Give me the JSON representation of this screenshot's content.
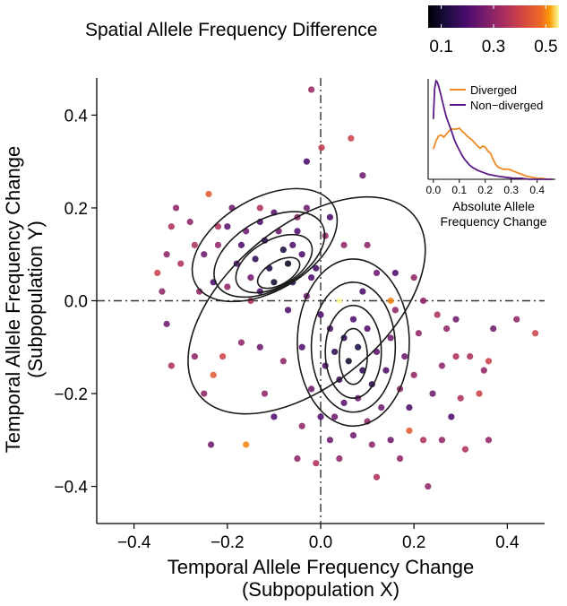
{
  "chart_data": [
    {
      "type": "scatter",
      "title": "",
      "xlabel_line1": "Temporal Allele Frequency Change",
      "xlabel_line2": "(Subpopulation X)",
      "ylabel_line1": "Temporal Allele Frequency Change",
      "ylabel_line2": "(Subpopulation Y)",
      "xlim": [
        -0.48,
        0.48
      ],
      "ylim": [
        -0.48,
        0.48
      ],
      "xticks": [
        -0.4,
        -0.2,
        0.0,
        0.2,
        0.4
      ],
      "xtick_labels": [
        "−0.4",
        "−0.2",
        "0.0",
        "0.2",
        "0.4"
      ],
      "yticks": [
        -0.4,
        -0.2,
        0.0,
        0.2,
        0.4
      ],
      "ytick_labels": [
        "−0.4",
        "−0.2",
        "0.0",
        "0.2",
        "0.4"
      ],
      "reference_lines": [
        {
          "axis": "x",
          "value": 0
        },
        {
          "axis": "y",
          "value": 0
        }
      ],
      "color_by": "Spatial Allele Frequency Difference",
      "colorbar": {
        "title": "Spatial Allele Frequency Difference",
        "range": [
          0.05,
          0.55
        ],
        "ticks": [
          0.1,
          0.3,
          0.5
        ],
        "tick_labels": [
          "0.1",
          "0.3",
          "0.5"
        ],
        "colormap": "inferno"
      },
      "density_contours": [
        {
          "level": 1,
          "cx": -0.09,
          "cy": 0.06,
          "rx": 0.05,
          "ry": 0.025,
          "rotation": -30
        },
        {
          "level": 2,
          "cx": -0.1,
          "cy": 0.08,
          "rx": 0.09,
          "ry": 0.05,
          "rotation": -30
        },
        {
          "level": 3,
          "cx": -0.11,
          "cy": 0.1,
          "rx": 0.13,
          "ry": 0.075,
          "rotation": -30
        },
        {
          "level": 4,
          "cx": -0.12,
          "cy": 0.12,
          "rx": 0.17,
          "ry": 0.1,
          "rotation": -30
        },
        {
          "level": 1,
          "cx": 0.07,
          "cy": -0.12,
          "rx": 0.03,
          "ry": 0.06,
          "rotation": 0
        },
        {
          "level": 2,
          "cx": 0.07,
          "cy": -0.11,
          "rx": 0.06,
          "ry": 0.1,
          "rotation": 0
        },
        {
          "level": 3,
          "cx": 0.07,
          "cy": -0.1,
          "rx": 0.09,
          "ry": 0.14,
          "rotation": 0
        },
        {
          "level": 4,
          "cx": 0.07,
          "cy": -0.09,
          "rx": 0.12,
          "ry": 0.18,
          "rotation": 0
        },
        {
          "level": 5,
          "cx": -0.03,
          "cy": -0.01,
          "rx": 0.3,
          "ry": 0.17,
          "rotation": -40
        }
      ],
      "series": [
        {
          "name": "points",
          "points": [
            {
              "x": -0.02,
              "y": 0.455,
              "c": 0.32
            },
            {
              "x": 0.065,
              "y": 0.35,
              "c": 0.4
            },
            {
              "x": 0.002,
              "y": 0.33,
              "c": 0.38
            },
            {
              "x": -0.03,
              "y": 0.3,
              "c": 0.2
            },
            {
              "x": 0.09,
              "y": 0.27,
              "c": 0.25
            },
            {
              "x": -0.13,
              "y": 0.2,
              "c": 0.35
            },
            {
              "x": -0.24,
              "y": 0.23,
              "c": 0.45
            },
            {
              "x": -0.22,
              "y": 0.16,
              "c": 0.35
            },
            {
              "x": -0.2,
              "y": 0.16,
              "c": 0.22
            },
            {
              "x": -0.28,
              "y": 0.17,
              "c": 0.3
            },
            {
              "x": -0.31,
              "y": 0.2,
              "c": 0.3
            },
            {
              "x": -0.32,
              "y": 0.16,
              "c": 0.35
            },
            {
              "x": -0.3,
              "y": 0.08,
              "c": 0.35
            },
            {
              "x": -0.33,
              "y": 0.1,
              "c": 0.3
            },
            {
              "x": -0.35,
              "y": 0.06,
              "c": 0.4
            },
            {
              "x": -0.34,
              "y": 0.02,
              "c": 0.3
            },
            {
              "x": -0.33,
              "y": -0.05,
              "c": 0.25
            },
            {
              "x": -0.32,
              "y": -0.14,
              "c": 0.35
            },
            {
              "x": -0.27,
              "y": -0.12,
              "c": 0.3
            },
            {
              "x": -0.23,
              "y": -0.16,
              "c": 0.45
            },
            {
              "x": -0.25,
              "y": -0.2,
              "c": 0.3
            },
            {
              "x": -0.21,
              "y": -0.12,
              "c": 0.4
            },
            {
              "x": -0.17,
              "y": -0.09,
              "c": 0.3
            },
            {
              "x": -0.13,
              "y": -0.1,
              "c": 0.25
            },
            {
              "x": -0.12,
              "y": -0.2,
              "c": 0.3
            },
            {
              "x": -0.16,
              "y": -0.31,
              "c": 0.5
            },
            {
              "x": -0.235,
              "y": -0.31,
              "c": 0.25
            },
            {
              "x": -0.1,
              "y": -0.25,
              "c": 0.2
            },
            {
              "x": 0.01,
              "y": 0.14,
              "c": 0.3
            },
            {
              "x": -0.05,
              "y": 0.15,
              "c": 0.2
            },
            {
              "x": -0.03,
              "y": 0.2,
              "c": 0.25
            },
            {
              "x": 0.02,
              "y": 0.18,
              "c": 0.2
            },
            {
              "x": 0.05,
              "y": 0.12,
              "c": 0.3
            },
            {
              "x": 0.1,
              "y": 0.12,
              "c": 0.3
            },
            {
              "x": 0.12,
              "y": 0.06,
              "c": 0.25
            },
            {
              "x": 0.16,
              "y": 0.06,
              "c": 0.2
            },
            {
              "x": 0.2,
              "y": 0.05,
              "c": 0.3
            },
            {
              "x": 0.22,
              "y": 0.0,
              "c": 0.3
            },
            {
              "x": 0.25,
              "y": -0.03,
              "c": 0.35
            },
            {
              "x": 0.27,
              "y": -0.06,
              "c": 0.3
            },
            {
              "x": 0.29,
              "y": -0.04,
              "c": 0.25
            },
            {
              "x": 0.29,
              "y": -0.12,
              "c": 0.35
            },
            {
              "x": 0.32,
              "y": -0.12,
              "c": 0.35
            },
            {
              "x": 0.36,
              "y": -0.13,
              "c": 0.4
            },
            {
              "x": 0.46,
              "y": -0.07,
              "c": 0.4
            },
            {
              "x": 0.42,
              "y": -0.04,
              "c": 0.3
            },
            {
              "x": 0.37,
              "y": -0.06,
              "c": 0.25
            },
            {
              "x": 0.35,
              "y": -0.15,
              "c": 0.3
            },
            {
              "x": 0.34,
              "y": -0.2,
              "c": 0.4
            },
            {
              "x": 0.3,
              "y": -0.21,
              "c": 0.35
            },
            {
              "x": 0.28,
              "y": -0.25,
              "c": 0.2
            },
            {
              "x": 0.36,
              "y": -0.3,
              "c": 0.3
            },
            {
              "x": 0.31,
              "y": -0.32,
              "c": 0.35
            },
            {
              "x": 0.26,
              "y": -0.3,
              "c": 0.3
            },
            {
              "x": 0.22,
              "y": -0.3,
              "c": 0.35
            },
            {
              "x": 0.19,
              "y": -0.28,
              "c": 0.45
            },
            {
              "x": 0.15,
              "y": -0.3,
              "c": 0.25
            },
            {
              "x": 0.11,
              "y": -0.31,
              "c": 0.3
            },
            {
              "x": 0.07,
              "y": -0.29,
              "c": 0.25
            },
            {
              "x": 0.04,
              "y": -0.34,
              "c": 0.3
            },
            {
              "x": -0.01,
              "y": -0.35,
              "c": 0.35
            },
            {
              "x": -0.05,
              "y": -0.34,
              "c": 0.3
            },
            {
              "x": -0.04,
              "y": -0.27,
              "c": 0.3
            },
            {
              "x": 0.0,
              "y": -0.25,
              "c": 0.2
            },
            {
              "x": 0.02,
              "y": -0.3,
              "c": 0.25
            },
            {
              "x": 0.12,
              "y": -0.38,
              "c": 0.35
            },
            {
              "x": 0.17,
              "y": -0.34,
              "c": 0.3
            },
            {
              "x": 0.23,
              "y": -0.4,
              "c": 0.3
            },
            {
              "x": -0.06,
              "y": 0.04,
              "c": 0.15
            },
            {
              "x": -0.11,
              "y": 0.07,
              "c": 0.12
            },
            {
              "x": -0.14,
              "y": 0.09,
              "c": 0.15
            },
            {
              "x": -0.08,
              "y": 0.11,
              "c": 0.12
            },
            {
              "x": -0.12,
              "y": 0.13,
              "c": 0.15
            },
            {
              "x": -0.17,
              "y": 0.12,
              "c": 0.2
            },
            {
              "x": -0.1,
              "y": 0.04,
              "c": 0.1
            },
            {
              "x": -0.07,
              "y": 0.08,
              "c": 0.08
            },
            {
              "x": -0.04,
              "y": 0.1,
              "c": 0.2
            },
            {
              "x": -0.15,
              "y": 0.05,
              "c": 0.25
            },
            {
              "x": -0.18,
              "y": 0.08,
              "c": 0.2
            },
            {
              "x": -0.2,
              "y": 0.03,
              "c": 0.3
            },
            {
              "x": -0.13,
              "y": 0.02,
              "c": 0.2
            },
            {
              "x": -0.09,
              "y": 0.15,
              "c": 0.25
            },
            {
              "x": -0.13,
              "y": 0.17,
              "c": 0.2
            },
            {
              "x": -0.06,
              "y": 0.12,
              "c": 0.2
            },
            {
              "x": -0.02,
              "y": 0.05,
              "c": 0.2
            },
            {
              "x": -0.03,
              "y": 0.01,
              "c": 0.25
            },
            {
              "x": -0.01,
              "y": 0.07,
              "c": 0.18
            },
            {
              "x": -0.16,
              "y": 0.15,
              "c": 0.25
            },
            {
              "x": -0.22,
              "y": 0.12,
              "c": 0.3
            },
            {
              "x": -0.25,
              "y": 0.1,
              "c": 0.25
            },
            {
              "x": -0.23,
              "y": 0.04,
              "c": 0.2
            },
            {
              "x": -0.26,
              "y": 0.02,
              "c": 0.3
            },
            {
              "x": -0.27,
              "y": 0.12,
              "c": 0.35
            },
            {
              "x": -0.19,
              "y": 0.2,
              "c": 0.25
            },
            {
              "x": -0.1,
              "y": 0.19,
              "c": 0.22
            },
            {
              "x": -0.05,
              "y": 0.18,
              "c": 0.3
            },
            {
              "x": 0.05,
              "y": -0.08,
              "c": 0.15
            },
            {
              "x": 0.08,
              "y": -0.1,
              "c": 0.12
            },
            {
              "x": 0.06,
              "y": -0.13,
              "c": 0.1
            },
            {
              "x": 0.09,
              "y": -0.15,
              "c": 0.15
            },
            {
              "x": 0.04,
              "y": -0.17,
              "c": 0.18
            },
            {
              "x": 0.1,
              "y": -0.06,
              "c": 0.2
            },
            {
              "x": 0.12,
              "y": -0.11,
              "c": 0.22
            },
            {
              "x": 0.03,
              "y": -0.11,
              "c": 0.15
            },
            {
              "x": 0.07,
              "y": -0.04,
              "c": 0.2
            },
            {
              "x": 0.11,
              "y": -0.18,
              "c": 0.15
            },
            {
              "x": 0.08,
              "y": -0.21,
              "c": 0.25
            },
            {
              "x": 0.14,
              "y": -0.15,
              "c": 0.2
            },
            {
              "x": 0.15,
              "y": -0.08,
              "c": 0.25
            },
            {
              "x": 0.02,
              "y": -0.06,
              "c": 0.18
            },
            {
              "x": 0.01,
              "y": -0.14,
              "c": 0.2
            },
            {
              "x": 0.05,
              "y": -0.22,
              "c": 0.22
            },
            {
              "x": 0.13,
              "y": -0.23,
              "c": 0.25
            },
            {
              "x": 0.17,
              "y": -0.19,
              "c": 0.3
            },
            {
              "x": 0.18,
              "y": -0.12,
              "c": 0.25
            },
            {
              "x": 0.16,
              "y": -0.02,
              "c": 0.3
            },
            {
              "x": 0.09,
              "y": 0.02,
              "c": 0.2
            },
            {
              "x": 0.04,
              "y": 0.0,
              "c": 0.55
            },
            {
              "x": 0.15,
              "y": 0.0,
              "c": 0.5
            },
            {
              "x": -0.07,
              "y": -0.02,
              "c": 0.2
            },
            {
              "x": 0.0,
              "y": -0.03,
              "c": 0.2
            },
            {
              "x": 0.2,
              "y": -0.16,
              "c": 0.3
            },
            {
              "x": 0.21,
              "y": -0.07,
              "c": 0.3
            },
            {
              "x": 0.19,
              "y": -0.23,
              "c": 0.2
            },
            {
              "x": 0.1,
              "y": -0.26,
              "c": 0.3
            },
            {
              "x": 0.03,
              "y": -0.25,
              "c": 0.25
            },
            {
              "x": -0.02,
              "y": -0.19,
              "c": 0.25
            },
            {
              "x": -0.04,
              "y": -0.1,
              "c": 0.2
            },
            {
              "x": -0.08,
              "y": -0.13,
              "c": 0.3
            },
            {
              "x": -0.15,
              "y": 0.0,
              "c": 0.35
            },
            {
              "x": 0.24,
              "y": -0.2,
              "c": 0.25
            },
            {
              "x": 0.26,
              "y": -0.14,
              "c": 0.3
            }
          ]
        }
      ]
    },
    {
      "type": "line",
      "title": "",
      "xlabel_line1": "Absolute Allele",
      "xlabel_line2": "Frequency Change",
      "ylabel": "",
      "xlim": [
        -0.02,
        0.47
      ],
      "ylim": [
        0,
        1.0
      ],
      "xticks": [
        0.0,
        0.1,
        0.2,
        0.3,
        0.4
      ],
      "xtick_labels": [
        "0.0",
        "0.1",
        "0.2",
        "0.3",
        "0.4"
      ],
      "series": [
        {
          "name": "Diverged",
          "color": "#ee8a22",
          "x": [
            0.0,
            0.01,
            0.02,
            0.03,
            0.04,
            0.05,
            0.06,
            0.07,
            0.08,
            0.09,
            0.1,
            0.11,
            0.12,
            0.13,
            0.14,
            0.15,
            0.16,
            0.17,
            0.18,
            0.19,
            0.2,
            0.21,
            0.22,
            0.23,
            0.24,
            0.25,
            0.26,
            0.27,
            0.28,
            0.29,
            0.3,
            0.32,
            0.34,
            0.36,
            0.38,
            0.4,
            0.42,
            0.44,
            0.46
          ],
          "y": [
            0.3,
            0.38,
            0.43,
            0.44,
            0.42,
            0.45,
            0.48,
            0.5,
            0.5,
            0.5,
            0.51,
            0.48,
            0.46,
            0.43,
            0.41,
            0.39,
            0.36,
            0.33,
            0.31,
            0.33,
            0.32,
            0.28,
            0.26,
            0.2,
            0.15,
            0.12,
            0.11,
            0.1,
            0.1,
            0.1,
            0.09,
            0.07,
            0.05,
            0.03,
            0.02,
            0.01,
            0.01,
            0.0,
            0.0
          ]
        },
        {
          "name": "Non−diverged",
          "color": "#5b1a87",
          "x": [
            0.0,
            0.005,
            0.01,
            0.015,
            0.02,
            0.025,
            0.03,
            0.04,
            0.05,
            0.06,
            0.07,
            0.08,
            0.09,
            0.1,
            0.11,
            0.12,
            0.13,
            0.14,
            0.15,
            0.17,
            0.19,
            0.21,
            0.23,
            0.25,
            0.28,
            0.31,
            0.34,
            0.37,
            0.4,
            0.43,
            0.46
          ],
          "y": [
            0.6,
            0.9,
            0.98,
            0.97,
            0.93,
            0.88,
            0.83,
            0.72,
            0.62,
            0.55,
            0.48,
            0.4,
            0.34,
            0.29,
            0.24,
            0.2,
            0.17,
            0.14,
            0.12,
            0.09,
            0.07,
            0.05,
            0.04,
            0.03,
            0.02,
            0.01,
            0.01,
            0.0,
            0.0,
            0.0,
            0.0
          ]
        }
      ],
      "legend": [
        "Diverged",
        "Non−diverged"
      ],
      "legend_position": "top-right"
    }
  ]
}
